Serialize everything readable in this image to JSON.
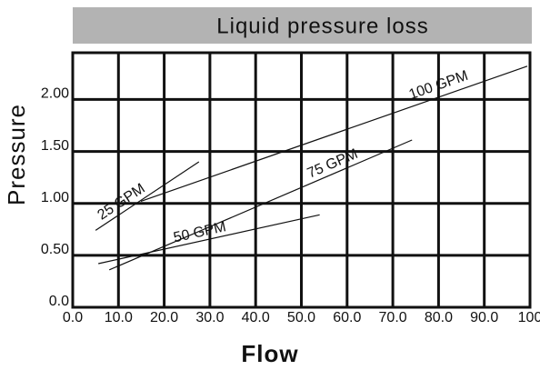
{
  "chart_data": {
    "type": "line",
    "title": "Liquid pressure loss",
    "xlabel": "Flow",
    "ylabel": "Pressure",
    "xlim": [
      0,
      100
    ],
    "ylim": [
      0,
      2.45
    ],
    "xticks": [
      {
        "value": 0,
        "label": "0.0"
      },
      {
        "value": 10,
        "label": "10.0"
      },
      {
        "value": 20,
        "label": "20.0"
      },
      {
        "value": 30,
        "label": "30.0"
      },
      {
        "value": 40,
        "label": "40.0"
      },
      {
        "value": 50,
        "label": "50.0"
      },
      {
        "value": 60,
        "label": "60.0"
      },
      {
        "value": 70,
        "label": "70.0"
      },
      {
        "value": 80,
        "label": "80.0"
      },
      {
        "value": 90,
        "label": "90.0"
      },
      100
    ],
    "yticks": [
      {
        "value": 0,
        "label": "0.0"
      },
      {
        "value": 0.5,
        "label": "0.50"
      },
      {
        "value": 1,
        "label": "1.00"
      },
      {
        "value": 1.5,
        "label": "1.50"
      },
      {
        "value": 2,
        "label": "2.00"
      }
    ],
    "grid": true,
    "series": [
      {
        "name": "25 GPM",
        "color": "#111111",
        "x": [
          5,
          27.6
        ],
        "values": [
          0.74,
          1.4
        ]
      },
      {
        "name": "50 GPM",
        "color": "#111111",
        "x": [
          5.6,
          54
        ],
        "values": [
          0.42,
          0.89
        ]
      },
      {
        "name": "75 GPM",
        "color": "#111111",
        "x": [
          8,
          74.2
        ],
        "values": [
          0.36,
          1.61
        ]
      },
      {
        "name": "100 GPM",
        "color": "#111111",
        "x": [
          14.9,
          99.4
        ],
        "values": [
          1.02,
          2.32
        ]
      }
    ]
  }
}
